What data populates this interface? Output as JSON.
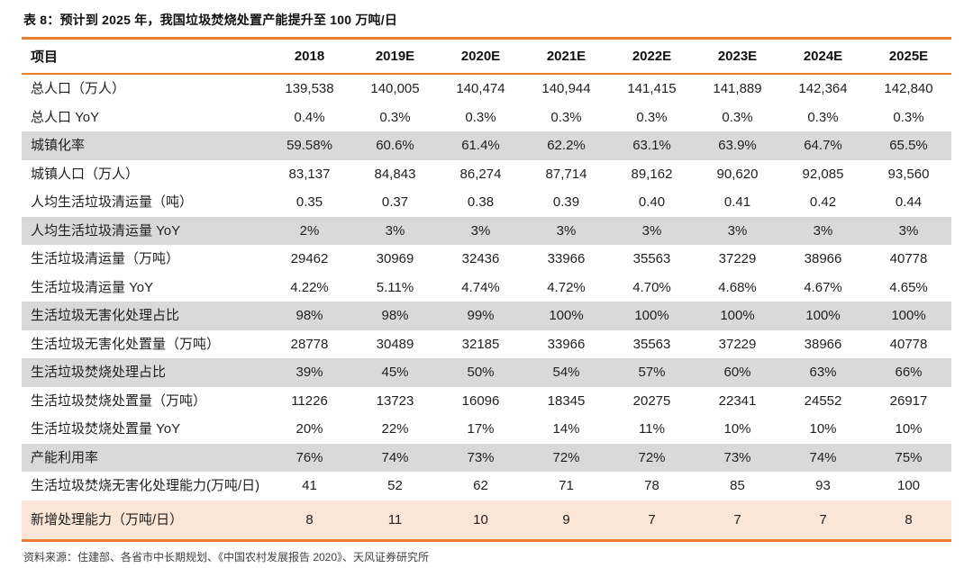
{
  "title": "表 8：预计到 2025 年，我国垃圾焚烧处置产能提升至 100 万吨/日",
  "source": "资料来源：住建部、各省市中长期规划、《中国农村发展报告 2020》、天风证券研究所",
  "colors": {
    "accent_orange": "#ED7D31",
    "row_gray": "#D9D9D9",
    "row_peach": "#FBE5D6"
  },
  "table": {
    "header": [
      "项目",
      "2018",
      "2019E",
      "2020E",
      "2021E",
      "2022E",
      "2023E",
      "2024E",
      "2025E"
    ],
    "rows": [
      {
        "label": "总人口（万人）",
        "highlight": "none",
        "values": [
          "139,538",
          "140,005",
          "140,474",
          "140,944",
          "141,415",
          "141,889",
          "142,364",
          "142,840"
        ]
      },
      {
        "label": "总人口 YoY",
        "highlight": "none",
        "values": [
          "0.4%",
          "0.3%",
          "0.3%",
          "0.3%",
          "0.3%",
          "0.3%",
          "0.3%",
          "0.3%"
        ]
      },
      {
        "label": "城镇化率",
        "highlight": "gray",
        "values": [
          "59.58%",
          "60.6%",
          "61.4%",
          "62.2%",
          "63.1%",
          "63.9%",
          "64.7%",
          "65.5%"
        ]
      },
      {
        "label": "城镇人口（万人）",
        "highlight": "none",
        "values": [
          "83,137",
          "84,843",
          "86,274",
          "87,714",
          "89,162",
          "90,620",
          "92,085",
          "93,560"
        ]
      },
      {
        "label": "人均生活垃圾清运量（吨）",
        "highlight": "none",
        "values": [
          "0.35",
          "0.37",
          "0.38",
          "0.39",
          "0.40",
          "0.41",
          "0.42",
          "0.44"
        ]
      },
      {
        "label": "人均生活垃圾清运量 YoY",
        "highlight": "gray",
        "values": [
          "2%",
          "3%",
          "3%",
          "3%",
          "3%",
          "3%",
          "3%",
          "3%"
        ]
      },
      {
        "label": "生活垃圾清运量（万吨）",
        "highlight": "none",
        "values": [
          "29462",
          "30969",
          "32436",
          "33966",
          "35563",
          "37229",
          "38966",
          "40778"
        ]
      },
      {
        "label": "生活垃圾清运量 YoY",
        "highlight": "none",
        "values": [
          "4.22%",
          "5.11%",
          "4.74%",
          "4.72%",
          "4.70%",
          "4.68%",
          "4.67%",
          "4.65%"
        ]
      },
      {
        "label": "生活垃圾无害化处理占比",
        "highlight": "gray",
        "values": [
          "98%",
          "98%",
          "99%",
          "100%",
          "100%",
          "100%",
          "100%",
          "100%"
        ]
      },
      {
        "label": "生活垃圾无害化处置量（万吨）",
        "highlight": "none",
        "values": [
          "28778",
          "30489",
          "32185",
          "33966",
          "35563",
          "37229",
          "38966",
          "40778"
        ]
      },
      {
        "label": "生活垃圾焚烧处理占比",
        "highlight": "gray",
        "values": [
          "39%",
          "45%",
          "50%",
          "54%",
          "57%",
          "60%",
          "63%",
          "66%"
        ]
      },
      {
        "label": "生活垃圾焚烧处置量（万吨）",
        "highlight": "none",
        "values": [
          "11226",
          "13723",
          "16096",
          "18345",
          "20275",
          "22341",
          "24552",
          "26917"
        ]
      },
      {
        "label": "生活垃圾焚烧处置量 YoY",
        "highlight": "none",
        "values": [
          "20%",
          "22%",
          "17%",
          "14%",
          "11%",
          "10%",
          "10%",
          "10%"
        ]
      },
      {
        "label": "产能利用率",
        "highlight": "gray",
        "values": [
          "76%",
          "74%",
          "73%",
          "72%",
          "72%",
          "73%",
          "74%",
          "75%"
        ]
      },
      {
        "label": "生活垃圾焚烧无害化处理能力(万吨/日)",
        "highlight": "none",
        "values": [
          "41",
          "52",
          "62",
          "71",
          "78",
          "85",
          "93",
          "100"
        ]
      },
      {
        "label": "新增处理能力（万吨/日）",
        "highlight": "peach",
        "values": [
          "8",
          "11",
          "10",
          "9",
          "7",
          "7",
          "7",
          "8"
        ]
      }
    ]
  }
}
